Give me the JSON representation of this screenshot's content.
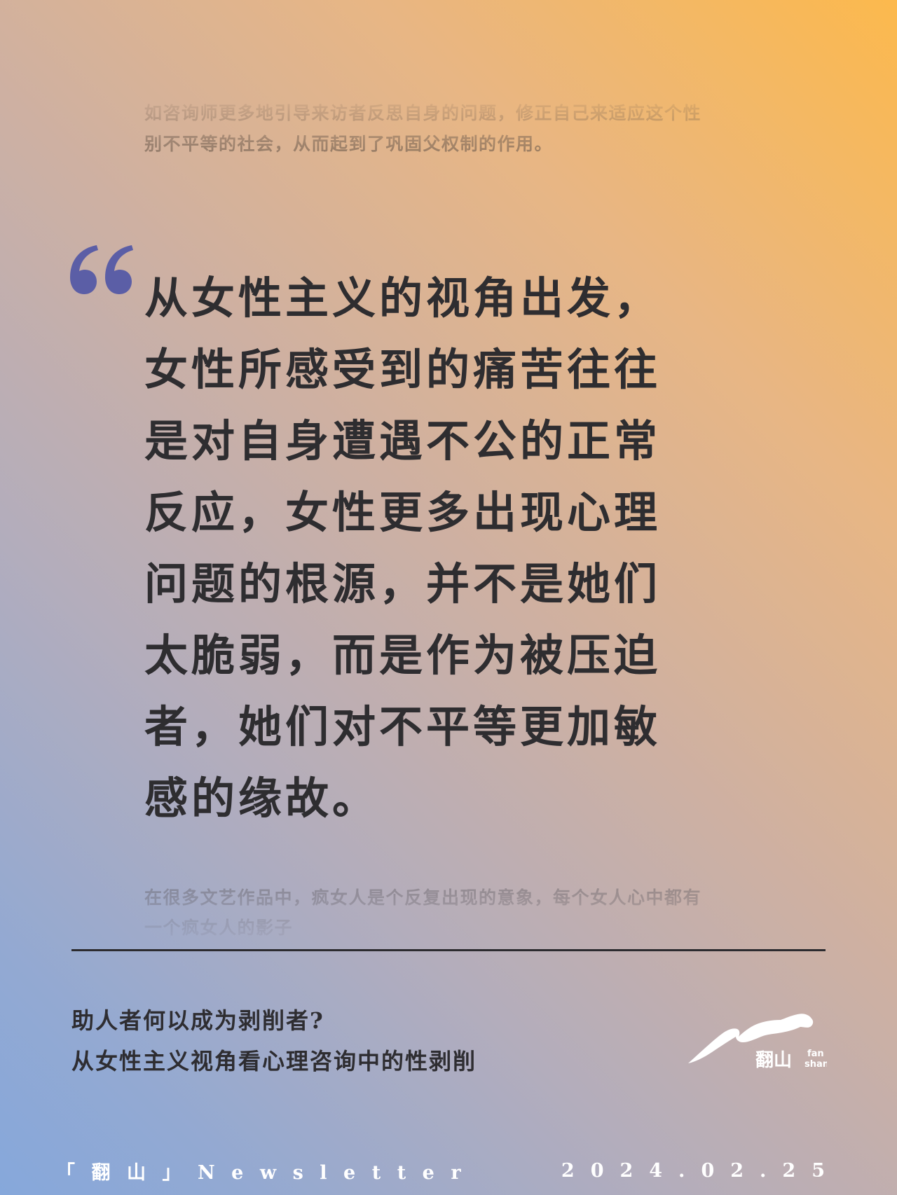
{
  "intro_text": "如咨询师更多地引导来访者反思自身的问题，修正自己来适应这个性别不平等的社会，从而起到了巩固父权制的作用。",
  "quote": {
    "text": "从女性主义的视角出发，女性所感受到的痛苦往往是对自身遭遇不公的正常反应，女性更多出现心理问题的根源，并不是她们太脆弱，而是作为被压迫者，她们对不平等更加敏感的缘故。",
    "mark_color": "#5b5ea6"
  },
  "outro_text": "在很多文艺作品中，疯女人是个反复出现的意象，每个女人心中都有一个疯女人的影子",
  "article": {
    "title_line1": "助人者何以成为剥削者?",
    "title_line2": "从女性主义视角看心理咨询中的性剥削"
  },
  "logo": {
    "chinese": "翻山",
    "latin_1": "fan",
    "latin_2": "shan"
  },
  "footer": {
    "publication": "「翻山」Newsletter",
    "date": "2024.02.25"
  }
}
